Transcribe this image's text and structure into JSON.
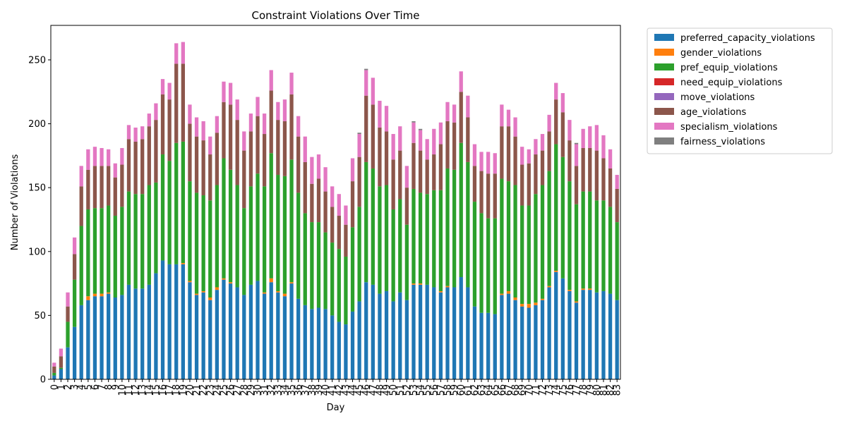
{
  "chart_data": {
    "type": "bar",
    "stacked": true,
    "title": "Constraint Violations Over Time",
    "xlabel": "Day",
    "ylabel": "Number of Violations",
    "ylim": [
      0,
      277
    ],
    "yticks": [
      0,
      50,
      100,
      150,
      200,
      250
    ],
    "grid": false,
    "legend_position": "outside-right",
    "categories": [
      "0",
      "1",
      "2",
      "3",
      "4",
      "5",
      "6",
      "7",
      "8",
      "9",
      "10",
      "11",
      "12",
      "13",
      "14",
      "15",
      "16",
      "17",
      "18",
      "19",
      "20",
      "21",
      "22",
      "23",
      "24",
      "25",
      "26",
      "27",
      "28",
      "29",
      "30",
      "31",
      "32",
      "33",
      "34",
      "35",
      "36",
      "37",
      "38",
      "39",
      "40",
      "41",
      "42",
      "43",
      "44",
      "45",
      "46",
      "47",
      "48",
      "49",
      "50",
      "51",
      "52",
      "53",
      "54",
      "55",
      "56",
      "57",
      "58",
      "59",
      "60",
      "61",
      "62",
      "63",
      "64",
      "65",
      "66",
      "67",
      "68",
      "69",
      "70",
      "71",
      "72",
      "73",
      "74",
      "75",
      "76",
      "77",
      "78",
      "79",
      "80",
      "81",
      "82",
      "83"
    ],
    "series": [
      {
        "name": "preferred_capacity_violations",
        "color": "#1f77b4",
        "values": [
          3,
          8,
          25,
          41,
          58,
          62,
          65,
          65,
          67,
          64,
          66,
          74,
          71,
          71,
          74,
          83,
          93,
          90,
          90,
          90,
          76,
          66,
          68,
          62,
          70,
          78,
          75,
          72,
          66,
          74,
          77,
          67,
          76,
          68,
          65,
          75,
          63,
          58,
          55,
          56,
          55,
          50,
          45,
          43,
          53,
          61,
          76,
          74,
          67,
          69,
          61,
          68,
          62,
          74,
          74,
          74,
          72,
          68,
          72,
          72,
          80,
          72,
          57,
          52,
          52,
          51,
          66,
          67,
          62,
          57,
          56,
          58,
          62,
          72,
          84,
          79,
          69,
          60,
          70,
          70,
          68,
          69,
          67,
          62
        ]
      },
      {
        "name": "gender_violations",
        "color": "#ff7f0e",
        "values": [
          0,
          0,
          0,
          0,
          0,
          3,
          2,
          2,
          1,
          0,
          0,
          0,
          0,
          0,
          0,
          0,
          0,
          0,
          0,
          1,
          1,
          1,
          1,
          2,
          2,
          1,
          1,
          0,
          0,
          0,
          0,
          1,
          3,
          1,
          2,
          1,
          0,
          0,
          0,
          0,
          0,
          0,
          0,
          0,
          0,
          0,
          0,
          0,
          0,
          0,
          0,
          0,
          0,
          1,
          1,
          0,
          0,
          1,
          1,
          0,
          0,
          0,
          0,
          0,
          0,
          0,
          1,
          2,
          2,
          2,
          3,
          2,
          1,
          1,
          1,
          0,
          1,
          1,
          1,
          1,
          0,
          0,
          0,
          0
        ]
      },
      {
        "name": "pref_equip_violations",
        "color": "#2ca02c",
        "values": [
          2,
          1,
          20,
          37,
          62,
          68,
          67,
          67,
          68,
          64,
          69,
          73,
          74,
          74,
          78,
          71,
          83,
          81,
          95,
          95,
          78,
          79,
          75,
          76,
          80,
          94,
          88,
          80,
          68,
          77,
          84,
          83,
          98,
          91,
          92,
          96,
          83,
          72,
          68,
          67,
          60,
          57,
          57,
          53,
          66,
          74,
          94,
          91,
          84,
          83,
          72,
          73,
          59,
          74,
          71,
          71,
          76,
          79,
          92,
          92,
          105,
          98,
          82,
          78,
          74,
          75,
          90,
          86,
          88,
          77,
          77,
          85,
          89,
          90,
          99,
          95,
          85,
          76,
          76,
          76,
          72,
          71,
          68,
          61
        ]
      },
      {
        "name": "need_equip_violations",
        "color": "#d62728",
        "values": [
          0,
          0,
          0,
          0,
          0,
          0,
          0,
          0,
          0,
          0,
          0,
          0,
          0,
          0,
          0,
          0,
          0,
          0,
          0,
          0,
          0,
          0,
          0,
          0,
          0,
          0,
          0,
          0,
          0,
          0,
          0,
          0,
          0,
          0,
          0,
          0,
          0,
          0,
          0,
          0,
          0,
          0,
          0,
          0,
          0,
          0,
          0,
          0,
          0,
          0,
          0,
          0,
          0,
          0,
          0,
          0,
          0,
          0,
          0,
          0,
          0,
          0,
          0,
          0,
          0,
          0,
          0,
          0,
          0,
          0,
          0,
          0,
          0,
          0,
          0,
          0,
          0,
          0,
          0,
          0,
          0,
          0,
          0,
          0
        ]
      },
      {
        "name": "move_violations",
        "color": "#9467bd",
        "values": [
          0,
          0,
          0,
          0,
          0,
          0,
          0,
          0,
          0,
          0,
          0,
          0,
          0,
          0,
          0,
          0,
          0,
          0,
          0,
          0,
          0,
          0,
          0,
          0,
          0,
          0,
          0,
          0,
          0,
          0,
          0,
          0,
          0,
          0,
          0,
          0,
          0,
          0,
          0,
          0,
          0,
          0,
          0,
          0,
          0,
          0,
          0,
          0,
          0,
          0,
          0,
          0,
          0,
          0,
          0,
          0,
          0,
          0,
          0,
          0,
          0,
          0,
          0,
          0,
          0,
          0,
          0,
          0,
          0,
          0,
          0,
          0,
          0,
          0,
          0,
          0,
          0,
          0,
          0,
          0,
          0,
          0,
          0,
          0
        ]
      },
      {
        "name": "age_violations",
        "color": "#8c564b",
        "values": [
          5,
          9,
          12,
          20,
          31,
          31,
          33,
          33,
          31,
          30,
          33,
          41,
          41,
          43,
          46,
          49,
          47,
          48,
          62,
          61,
          45,
          44,
          43,
          36,
          41,
          44,
          51,
          51,
          45,
          43,
          45,
          41,
          49,
          43,
          43,
          51,
          44,
          40,
          30,
          34,
          32,
          28,
          26,
          25,
          36,
          39,
          52,
          50,
          46,
          42,
          39,
          38,
          29,
          36,
          33,
          27,
          28,
          36,
          37,
          37,
          40,
          35,
          28,
          33,
          35,
          35,
          41,
          43,
          38,
          32,
          33,
          31,
          27,
          31,
          35,
          35,
          32,
          30,
          34,
          34,
          39,
          33,
          30,
          26
        ]
      },
      {
        "name": "specialism_violations",
        "color": "#e377c2",
        "values": [
          3,
          6,
          11,
          13,
          16,
          16,
          15,
          14,
          13,
          11,
          13,
          11,
          11,
          10,
          10,
          13,
          12,
          13,
          16,
          17,
          15,
          15,
          15,
          14,
          13,
          16,
          17,
          16,
          15,
          14,
          15,
          16,
          16,
          14,
          17,
          17,
          16,
          20,
          21,
          19,
          19,
          16,
          17,
          15,
          18,
          18,
          20,
          21,
          21,
          20,
          20,
          19,
          17,
          16,
          16,
          16,
          20,
          17,
          15,
          14,
          16,
          17,
          17,
          15,
          17,
          16,
          17,
          13,
          15,
          14,
          11,
          12,
          13,
          13,
          13,
          15,
          16,
          17,
          15,
          17,
          20,
          18,
          15,
          11
        ]
      },
      {
        "name": "fairness_violations",
        "color": "#7f7f7f",
        "values": [
          0,
          0,
          0,
          0,
          0,
          0,
          0,
          0,
          0,
          0,
          0,
          0,
          0,
          0,
          0,
          0,
          0,
          0,
          0,
          0,
          0,
          0,
          0,
          0,
          0,
          0,
          0,
          0,
          0,
          0,
          0,
          0,
          0,
          0,
          0,
          0,
          0,
          0,
          0,
          0,
          0,
          0,
          0,
          0,
          0,
          1,
          1,
          0,
          0,
          0,
          0,
          0,
          0,
          1,
          1,
          0,
          0,
          0,
          0,
          0,
          0,
          0,
          0,
          0,
          0,
          0,
          0,
          0,
          0,
          0,
          0,
          0,
          0,
          0,
          0,
          0,
          0,
          1,
          0,
          0,
          0,
          0,
          0,
          0
        ]
      }
    ]
  }
}
